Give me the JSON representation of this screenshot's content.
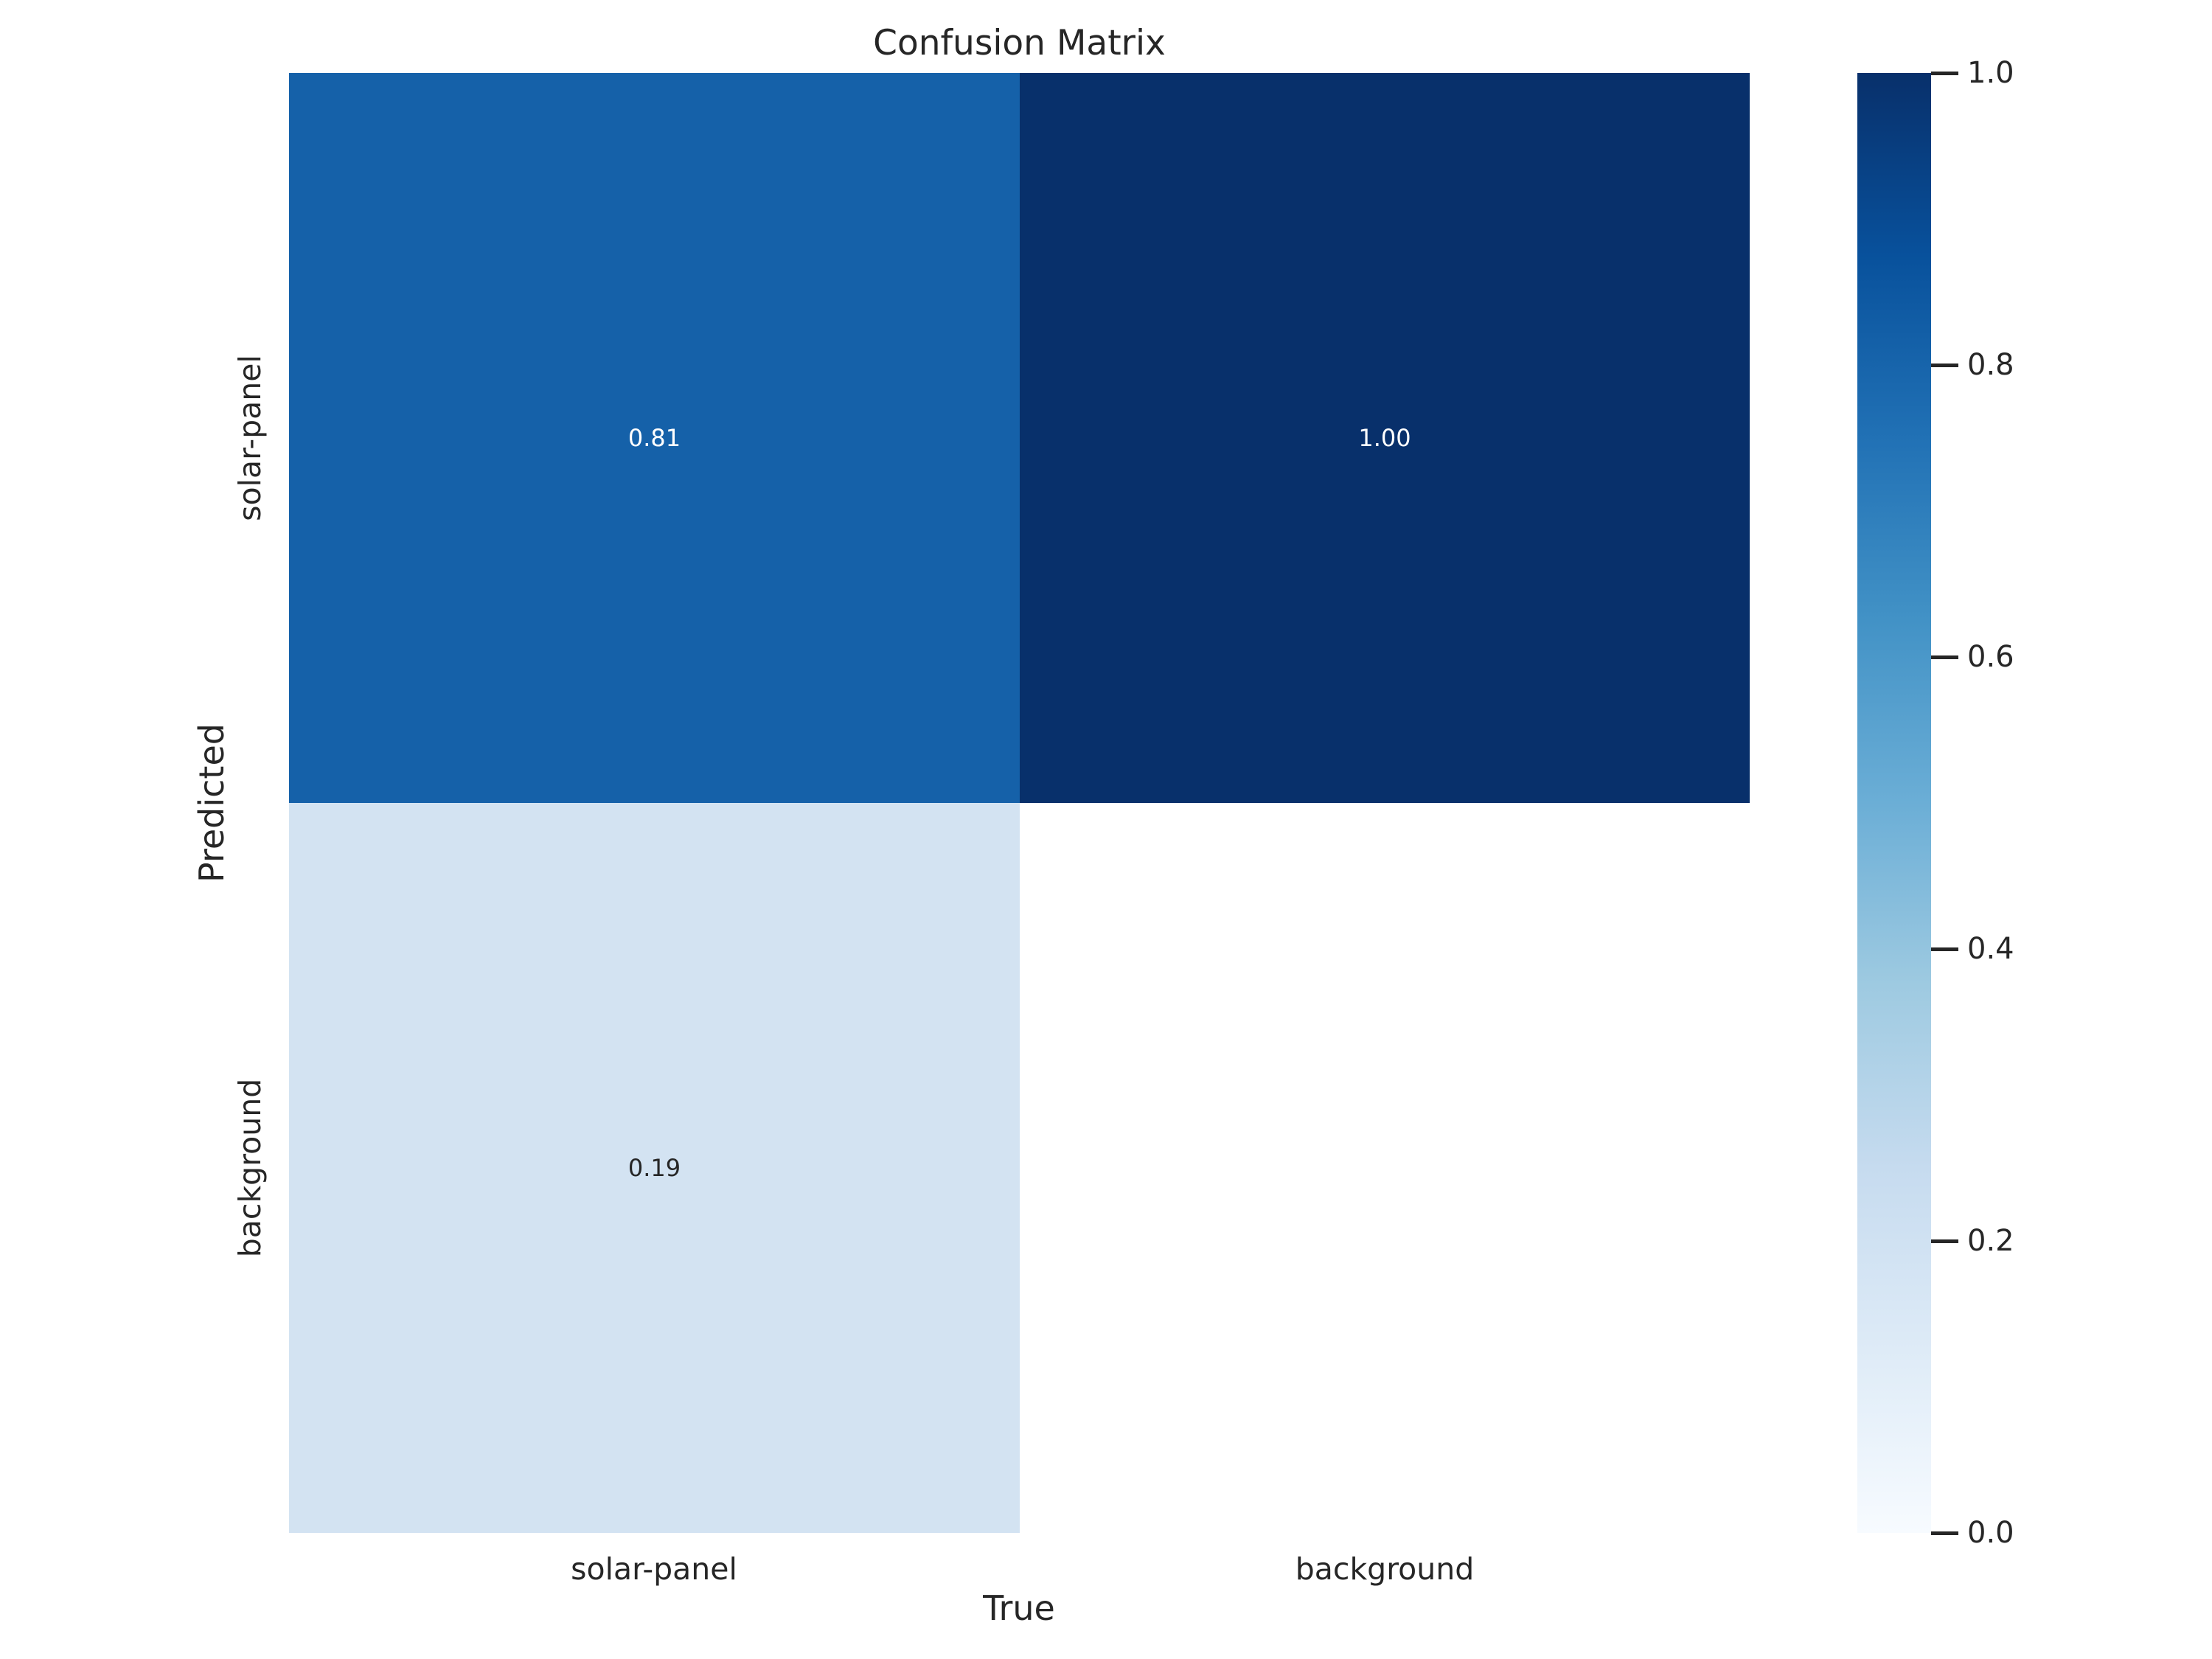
{
  "chart_data": {
    "type": "heatmap",
    "title": "Confusion Matrix",
    "xlabel": "True",
    "ylabel": "Predicted",
    "x_categories": [
      "solar-panel",
      "background"
    ],
    "y_categories": [
      "solar-panel",
      "background"
    ],
    "values": [
      [
        0.81,
        1.0
      ],
      [
        0.19,
        null
      ]
    ],
    "cells": [
      {
        "row": 0,
        "col": 0,
        "value": "0.81",
        "color": "#1561a9",
        "text_color": "#ffffff"
      },
      {
        "row": 0,
        "col": 1,
        "value": "1.00",
        "color": "#08306b",
        "text_color": "#ffffff"
      },
      {
        "row": 1,
        "col": 0,
        "value": "0.19",
        "color": "#d3e3f2",
        "text_color": "#262626"
      },
      {
        "row": 1,
        "col": 1,
        "value": "",
        "color": "#ffffff",
        "text_color": "#262626"
      }
    ],
    "colormap": "Blues",
    "colorbar": {
      "position": "right",
      "min": 0.0,
      "max": 1.0,
      "ticks": [
        {
          "value": 1.0,
          "label": "1.0"
        },
        {
          "value": 0.8,
          "label": "0.8"
        },
        {
          "value": 0.6,
          "label": "0.6"
        },
        {
          "value": 0.4,
          "label": "0.4"
        },
        {
          "value": 0.2,
          "label": "0.2"
        },
        {
          "value": 0.0,
          "label": "0.0"
        }
      ],
      "gradient_stops": [
        {
          "pos": 0,
          "color": "#08306b"
        },
        {
          "pos": 12.5,
          "color": "#08519c"
        },
        {
          "pos": 25,
          "color": "#2171b5"
        },
        {
          "pos": 37.5,
          "color": "#4292c6"
        },
        {
          "pos": 50,
          "color": "#6baed6"
        },
        {
          "pos": 62.5,
          "color": "#9ecae1"
        },
        {
          "pos": 75,
          "color": "#c6dbef"
        },
        {
          "pos": 87.5,
          "color": "#deebf7"
        },
        {
          "pos": 100,
          "color": "#f7fbff"
        }
      ]
    },
    "grid": false,
    "background_color": "#ffffff",
    "text_color": "#262626"
  }
}
